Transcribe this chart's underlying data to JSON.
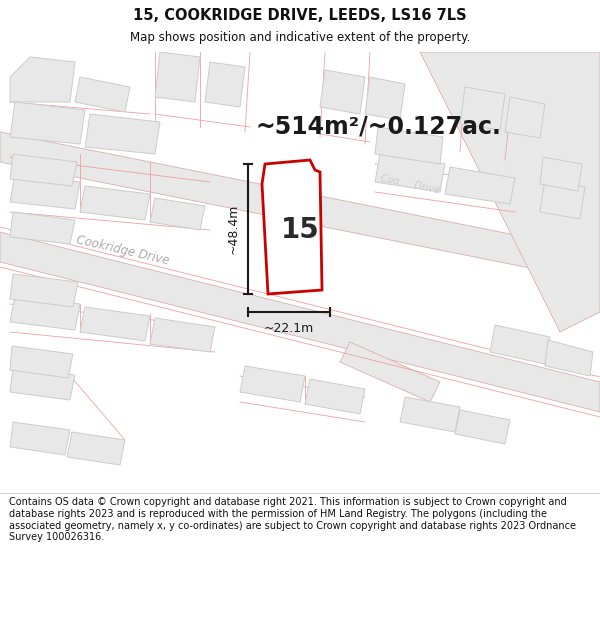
{
  "title_line1": "15, COOKRIDGE DRIVE, LEEDS, LS16 7LS",
  "title_line2": "Map shows position and indicative extent of the property.",
  "area_text": "~514m²/~0.127ac.",
  "number_label": "15",
  "dim_vertical": "~48.4m",
  "dim_horizontal": "~22.1m",
  "road_label_lower": "Cookridge Drive",
  "road_label_upper": "Coo...  Drive",
  "footer_text": "Contains OS data © Crown copyright and database right 2021. This information is subject to Crown copyright and database rights 2023 and is reproduced with the permission of HM Land Registry. The polygons (including the associated geometry, namely x, y co-ordinates) are subject to Crown copyright and database rights 2023 Ordnance Survey 100026316.",
  "bg_color": "#ffffff",
  "map_bg": "#ffffff",
  "building_fill": "#e8e8e8",
  "building_edge": "#cccccc",
  "plot_edge_light": "#f0a0a0",
  "road_fill": "#eeeeee",
  "road_edge": "#e0a0a0",
  "highlight_edge": "#cc0000",
  "highlight_fill": "#ffffff",
  "dim_color": "#1a1a1a",
  "title_color": "#111111",
  "footer_color": "#111111",
  "area_text_color": "#1a1a1a",
  "road_label_color": "#aaaaaa"
}
